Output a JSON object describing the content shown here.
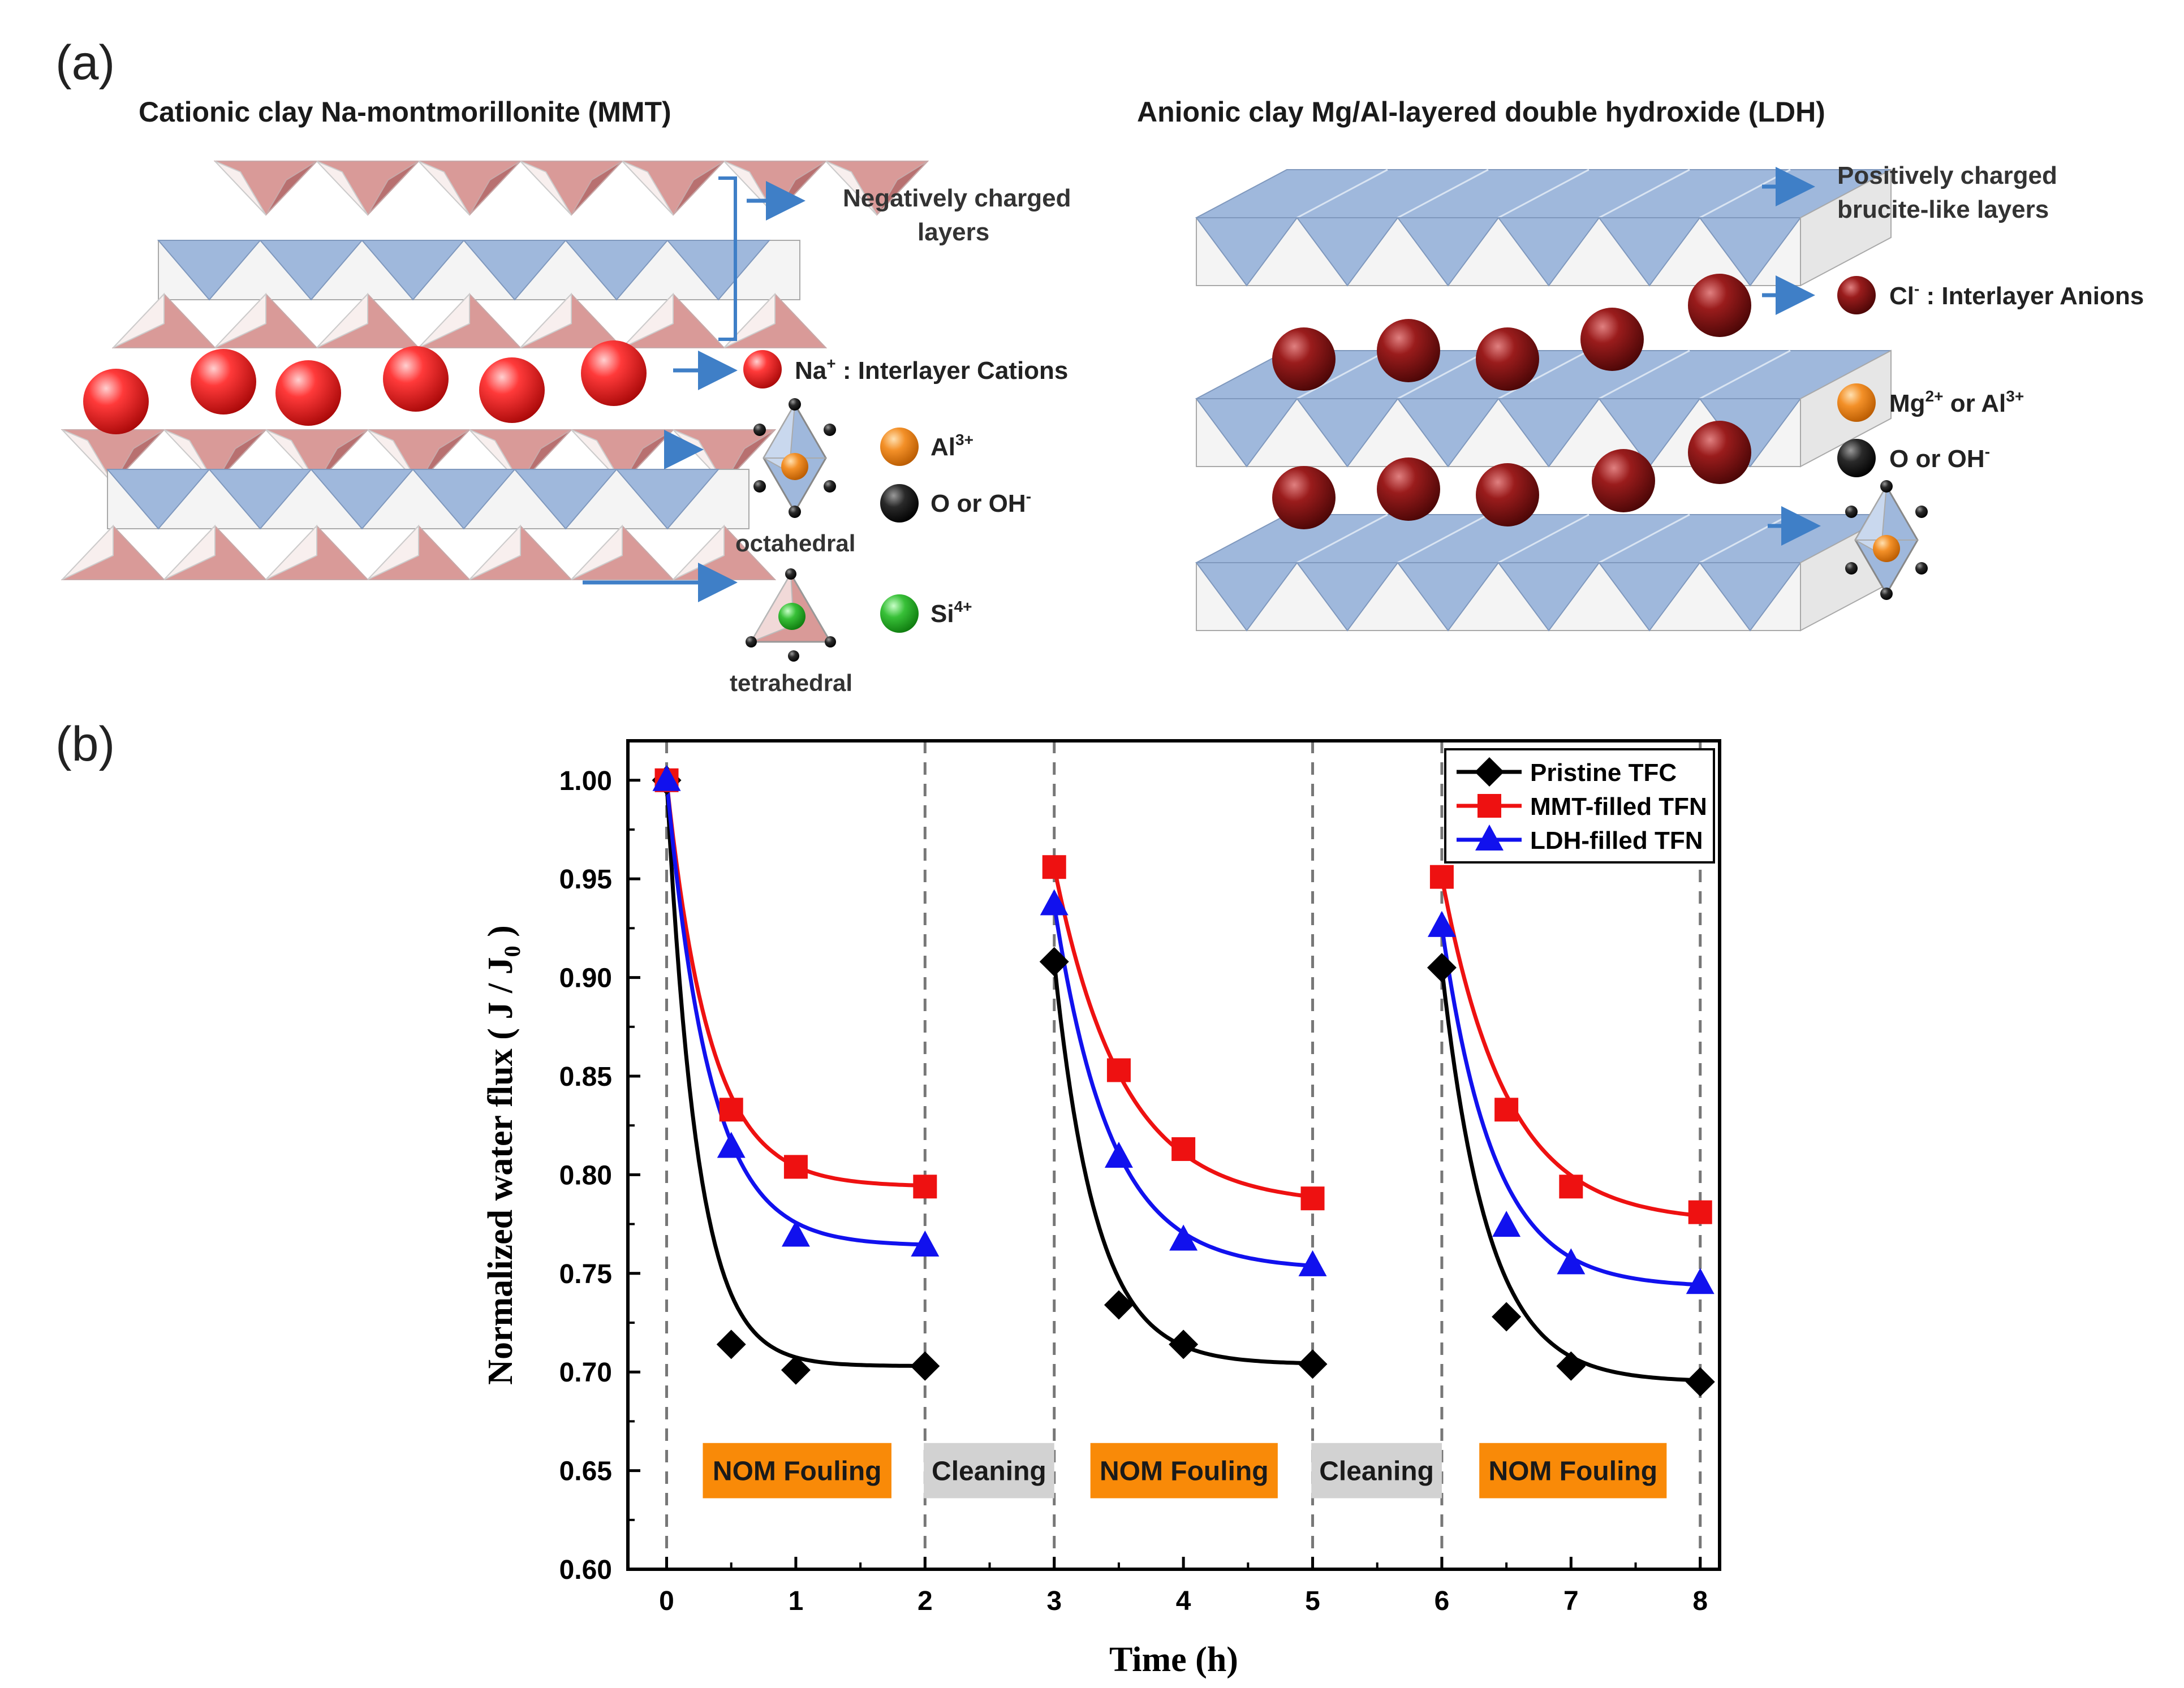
{
  "colors": {
    "blue_face": "#9fb8dc",
    "blue_edge": "#7f98bd",
    "white_face": "#f4f4f4",
    "white_edge": "#a9a9a9",
    "pink_face": "#d99a98",
    "pink_dark": "#b87070",
    "pink_light": "#f8efee",
    "na_ball": "#f02020",
    "cl_ball": "#8b1616",
    "arrow": "#3f7fc7",
    "al_ball": "#f08a20",
    "o_ball": "#1a1a1a",
    "si_ball": "#2fb52f",
    "pristine": "#000000",
    "mmt": "#ee1111",
    "ldh": "#1111ee",
    "fouling_bg": "#f98a08",
    "cleaning_bg": "#d2d2d2"
  },
  "panel_a": {
    "panel_label": "(a)",
    "mmt": {
      "title": "Cationic clay Na-montmorillonite (MMT)",
      "negative_layers_line1": "Negatively charged",
      "negative_layers_line2": "layers",
      "cation_ion": "Na",
      "cation_charge": "+",
      "cation_label": " : Interlayer Cations",
      "al_ion": "Al",
      "al_charge": "3+",
      "o_label": "O or OH",
      "o_charge": "-",
      "octahedral_label": "octahedral",
      "si_ion": "Si",
      "si_charge": "4+",
      "tetrahedral_label": "tetrahedral"
    },
    "ldh": {
      "title": "Anionic clay Mg/Al-layered double hydroxide (LDH)",
      "positive_layers_line1": "Positively charged",
      "positive_layers_line2": "brucite-like layers",
      "anion_ion": "Cl",
      "anion_charge": "-",
      "anion_label": " : Interlayer Anions",
      "mg_ion": "Mg",
      "mg_charge": "2+",
      "mg_or": " or Al",
      "al_charge": "3+",
      "o_label": "O or OH",
      "o_charge": "-"
    }
  },
  "panel_b": {
    "panel_label": "(b)"
  },
  "chart_data": {
    "type": "line",
    "title": "",
    "xlabel": "Time (h)",
    "ylabel_main": "Normalized water flux ( J / J",
    "ylabel_sub": "0",
    "ylabel_end": " )",
    "xlim": [
      -0.3,
      8.15
    ],
    "ylim": [
      0.6,
      1.02
    ],
    "x_ticks": [
      0,
      1,
      2,
      3,
      4,
      5,
      6,
      7,
      8
    ],
    "x_tick_labels": [
      "0",
      "1",
      "2",
      "3",
      "4",
      "5",
      "6",
      "7",
      "8"
    ],
    "y_ticks": [
      0.6,
      0.65,
      0.7,
      0.75,
      0.8,
      0.85,
      0.9,
      0.95,
      1.0
    ],
    "y_tick_labels": [
      "0.60",
      "0.65",
      "0.70",
      "0.75",
      "0.80",
      "0.85",
      "0.90",
      "0.95",
      "1.00"
    ],
    "vlines": [
      0,
      2,
      3,
      5,
      6,
      8
    ],
    "legend_position": "top-right",
    "series": [
      {
        "name": "Pristine TFC",
        "marker": "diamond",
        "points": [
          [
            0,
            1.0
          ],
          [
            0.5,
            0.714
          ],
          [
            1,
            0.701
          ],
          [
            2,
            0.703
          ],
          [
            3,
            0.908
          ],
          [
            3.5,
            0.734
          ],
          [
            4,
            0.714
          ],
          [
            5,
            0.704
          ],
          [
            6,
            0.905
          ],
          [
            6.5,
            0.728
          ],
          [
            7,
            0.703
          ],
          [
            8,
            0.695
          ]
        ],
        "fit_segments": [
          {
            "t0": 0,
            "t1": 2,
            "y0": 1.0,
            "a": 0.703,
            "k": 4.2
          },
          {
            "t0": 3,
            "t1": 5,
            "y0": 0.908,
            "a": 0.704,
            "k": 3.1
          },
          {
            "t0": 6,
            "t1": 8,
            "y0": 0.905,
            "a": 0.695,
            "k": 2.8
          }
        ]
      },
      {
        "name": "MMT-filled TFN",
        "marker": "square",
        "points": [
          [
            0,
            1.0
          ],
          [
            0.5,
            0.833
          ],
          [
            1,
            0.804
          ],
          [
            2,
            0.794
          ],
          [
            3,
            0.956
          ],
          [
            3.5,
            0.853
          ],
          [
            4,
            0.813
          ],
          [
            5,
            0.788
          ],
          [
            6,
            0.951
          ],
          [
            6.5,
            0.833
          ],
          [
            7,
            0.794
          ],
          [
            8,
            0.781
          ]
        ],
        "fit_segments": [
          {
            "t0": 0,
            "t1": 2,
            "y0": 1.0,
            "a": 0.794,
            "k": 3.0
          },
          {
            "t0": 3,
            "t1": 5,
            "y0": 0.956,
            "a": 0.785,
            "k": 1.9
          },
          {
            "t0": 6,
            "t1": 8,
            "y0": 0.951,
            "a": 0.776,
            "k": 2.0
          }
        ]
      },
      {
        "name": "LDH-filled TFN",
        "marker": "triangle",
        "points": [
          [
            0,
            1.0
          ],
          [
            0.5,
            0.814
          ],
          [
            1,
            0.769
          ],
          [
            2,
            0.764
          ],
          [
            3,
            0.937
          ],
          [
            3.5,
            0.809
          ],
          [
            4,
            0.767
          ],
          [
            5,
            0.754
          ],
          [
            6,
            0.926
          ],
          [
            6.5,
            0.774
          ],
          [
            7,
            0.755
          ],
          [
            8,
            0.745
          ]
        ],
        "fit_segments": [
          {
            "t0": 0,
            "t1": 2,
            "y0": 1.0,
            "a": 0.764,
            "k": 3.0
          },
          {
            "t0": 3,
            "t1": 5,
            "y0": 0.937,
            "a": 0.752,
            "k": 2.3
          },
          {
            "t0": 6,
            "t1": 8,
            "y0": 0.926,
            "a": 0.743,
            "k": 2.5
          }
        ]
      }
    ],
    "phase_labels": [
      {
        "text": "NOM Fouling",
        "x0": 0.28,
        "x1": 1.74,
        "kind": "fouling"
      },
      {
        "text": "Cleaning",
        "x0": 1.99,
        "x1": 3.0,
        "kind": "cleaning"
      },
      {
        "text": "NOM Fouling",
        "x0": 3.28,
        "x1": 4.73,
        "kind": "fouling"
      },
      {
        "text": "Cleaning",
        "x0": 4.99,
        "x1": 6.0,
        "kind": "cleaning"
      },
      {
        "text": "NOM Fouling",
        "x0": 6.29,
        "x1": 7.74,
        "kind": "fouling"
      }
    ]
  }
}
